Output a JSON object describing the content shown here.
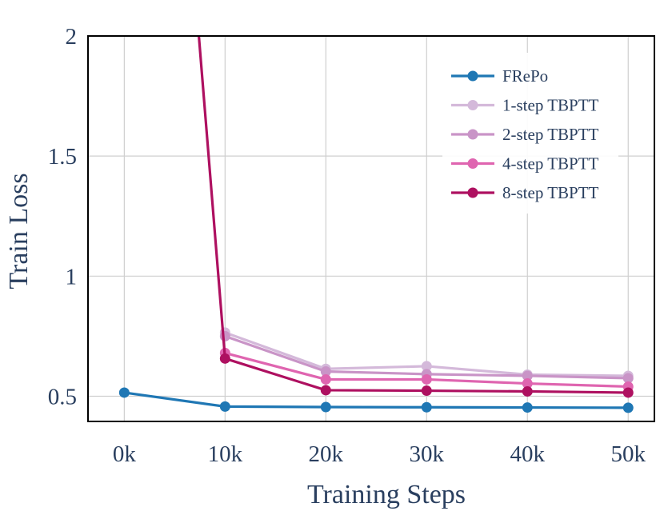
{
  "chart_data": {
    "type": "line",
    "xlabel": "Training Steps",
    "ylabel": "Train Loss",
    "x": [
      0,
      10,
      20,
      30,
      40,
      50
    ],
    "x_tick_labels": [
      "0k",
      "10k",
      "20k",
      "30k",
      "40k",
      "50k"
    ],
    "xlim": [
      -3.6,
      52.6
    ],
    "y_ticks": [
      0.5,
      1,
      1.5,
      2
    ],
    "y_tick_labels": [
      "0.5",
      "1",
      "1.5",
      "2"
    ],
    "ylim": [
      0.395,
      2.0
    ],
    "grid": true,
    "legend_position": "top-right",
    "series": [
      {
        "name": "FRePo",
        "color": "#1f77b4",
        "x": [
          0,
          10,
          20,
          30,
          40,
          50
        ],
        "values": [
          0.515,
          0.457,
          0.455,
          0.454,
          0.453,
          0.452
        ]
      },
      {
        "name": "1-step TBPTT",
        "color": "#d4b9da",
        "x": [
          10,
          20,
          30,
          40,
          50
        ],
        "values": [
          0.765,
          0.614,
          0.625,
          0.59,
          0.585
        ]
      },
      {
        "name": "2-step TBPTT",
        "color": "#c994c7",
        "x": [
          10,
          20,
          30,
          40,
          50
        ],
        "values": [
          0.75,
          0.603,
          0.592,
          0.585,
          0.575
        ]
      },
      {
        "name": "4-step TBPTT",
        "color": "#df65b0",
        "x": [
          10,
          20,
          30,
          40,
          50
        ],
        "values": [
          0.68,
          0.57,
          0.57,
          0.553,
          0.54
        ]
      },
      {
        "name": "8-step TBPTT",
        "color": "#ae1060",
        "x": [
          7.4,
          10,
          20,
          30,
          40,
          50
        ],
        "values": [
          2.0,
          0.657,
          0.525,
          0.523,
          0.52,
          0.515
        ]
      }
    ]
  }
}
